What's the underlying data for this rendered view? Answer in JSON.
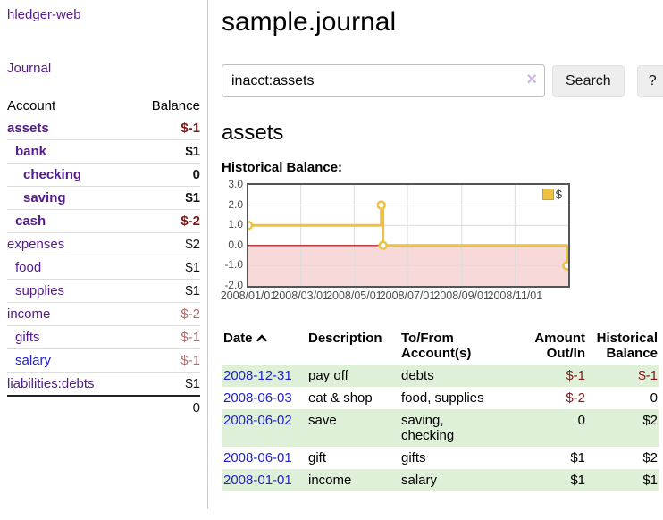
{
  "app": {
    "title": "hledger-web"
  },
  "sidebar": {
    "journal_link": "Journal",
    "header": {
      "account": "Account",
      "balance": "Balance"
    },
    "accounts": [
      {
        "name": "assets",
        "balance": "$-1",
        "depth": 0,
        "bold": true,
        "neg": "strong"
      },
      {
        "name": "bank",
        "balance": "$1",
        "depth": 1,
        "bold": true
      },
      {
        "name": "checking",
        "balance": "0",
        "depth": 2,
        "bold": true
      },
      {
        "name": "saving",
        "balance": "$1",
        "depth": 2,
        "bold": true
      },
      {
        "name": "cash",
        "balance": "$-2",
        "depth": 1,
        "bold": true,
        "neg": "strong"
      },
      {
        "name": "expenses",
        "balance": "$2",
        "depth": 0
      },
      {
        "name": "food",
        "balance": "$1",
        "depth": 1
      },
      {
        "name": "supplies",
        "balance": "$1",
        "depth": 1
      },
      {
        "name": "income",
        "balance": "$-2",
        "depth": 0,
        "neg": "muted"
      },
      {
        "name": "gifts",
        "balance": "$-1",
        "depth": 1,
        "neg": "muted"
      },
      {
        "name": "salary",
        "balance": "$-1",
        "depth": 1,
        "neg": "muted",
        "link_style": "unvisited"
      },
      {
        "name": "liabilities:debts",
        "balance": "$1",
        "depth": 0
      }
    ],
    "total": "0"
  },
  "main": {
    "title": "sample.journal",
    "search": {
      "value": "inacct:assets",
      "clear_icon": "×",
      "search_label": "Search",
      "help_label": "?"
    },
    "account_heading": "assets",
    "chart_label": "Historical Balance:"
  },
  "chart_data": {
    "type": "line",
    "style": "step",
    "title": "Historical Balance:",
    "series": [
      {
        "name": "$",
        "color": "#edc240",
        "points": [
          [
            "2008-01-01",
            1
          ],
          [
            "2008-06-01",
            2
          ],
          [
            "2008-06-03",
            0
          ],
          [
            "2008-12-31",
            -1
          ]
        ]
      }
    ],
    "x_ticks": [
      "2008/01/01",
      "2008/03/01",
      "2008/05/01",
      "2008/07/01",
      "2008/09/01",
      "2008/11/01"
    ],
    "x_range": [
      "2008-01-01",
      "2009-01-01"
    ],
    "y_ticks": [
      3,
      2,
      1,
      0,
      -1,
      -2
    ],
    "ylim": [
      -2,
      3
    ],
    "grid": true,
    "legend_position": "top-right",
    "negative_region_color": "#f8d9d9",
    "zero_line_color": "#a40000"
  },
  "table": {
    "headers": {
      "date": "Date",
      "description": "Description",
      "accounts": "To/From\nAccount(s)",
      "amount": "Amount\nOut/In",
      "balance": "Historical\nBalance"
    },
    "rows": [
      {
        "date": "2008-12-31",
        "description": "pay off",
        "accounts": "debts",
        "amount": "$-1",
        "balance": "$-1",
        "amount_neg": true,
        "balance_neg": true,
        "shaded": true
      },
      {
        "date": "2008-06-03",
        "description": "eat & shop",
        "accounts": "food, supplies",
        "amount": "$-2",
        "balance": "0",
        "amount_neg": true
      },
      {
        "date": "2008-06-02",
        "description": "save",
        "accounts": "saving,\nchecking",
        "amount": "0",
        "balance": "$2",
        "shaded": true
      },
      {
        "date": "2008-06-01",
        "description": "gift",
        "accounts": "gifts",
        "amount": "$1",
        "balance": "$2"
      },
      {
        "date": "2008-01-01",
        "description": "income",
        "accounts": "salary",
        "amount": "$1",
        "balance": "$1",
        "shaded": true
      }
    ]
  }
}
